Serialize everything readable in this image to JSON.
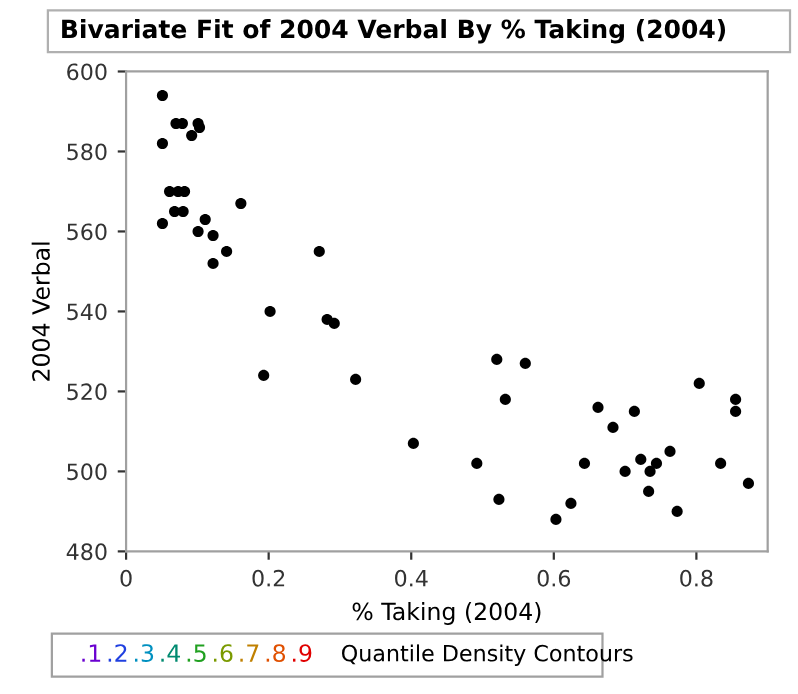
{
  "chart_data": {
    "type": "scatter",
    "title": "Bivariate Fit of 2004 Verbal By % Taking (2004)",
    "xlabel": "% Taking (2004)",
    "ylabel": "2004 Verbal",
    "x": [
      0.051,
      0.07,
      0.079,
      0.101,
      0.103,
      0.092,
      0.051,
      0.061,
      0.073,
      0.082,
      0.068,
      0.08,
      0.111,
      0.051,
      0.101,
      0.122,
      0.161,
      0.141,
      0.122,
      0.271,
      0.202,
      0.282,
      0.292,
      0.193,
      0.322,
      0.403,
      0.492,
      0.523,
      0.532,
      0.52,
      0.56,
      0.603,
      0.624,
      0.643,
      0.662,
      0.683,
      0.713,
      0.7,
      0.722,
      0.735,
      0.744,
      0.733,
      0.763,
      0.773,
      0.804,
      0.834,
      0.855,
      0.855,
      0.873
    ],
    "series": [
      {
        "color": "#000000",
        "values": [
          594,
          587,
          587,
          587,
          586,
          584,
          582,
          570,
          570,
          570,
          565,
          565,
          563,
          562,
          560,
          559,
          567,
          555,
          552,
          555,
          540,
          538,
          537,
          524,
          523,
          507,
          502,
          493,
          518,
          528,
          527,
          488,
          492,
          502,
          516,
          511,
          515,
          500,
          503,
          500,
          502,
          495,
          505,
          490,
          522,
          502,
          518,
          515,
          497
        ]
      }
    ],
    "xlim": [
      0,
      0.9
    ],
    "ylim": [
      480,
      600
    ],
    "xticks": [
      0,
      0.2,
      0.4,
      0.6,
      0.8
    ],
    "yticks": [
      480,
      500,
      520,
      540,
      560,
      580,
      600
    ],
    "grid": false,
    "marker": "circle",
    "annotations": [
      ".1",
      ".2",
      ".3",
      ".4",
      ".5",
      ".6",
      ".7",
      ".8",
      ".9",
      "Quantile Density Contours"
    ]
  }
}
